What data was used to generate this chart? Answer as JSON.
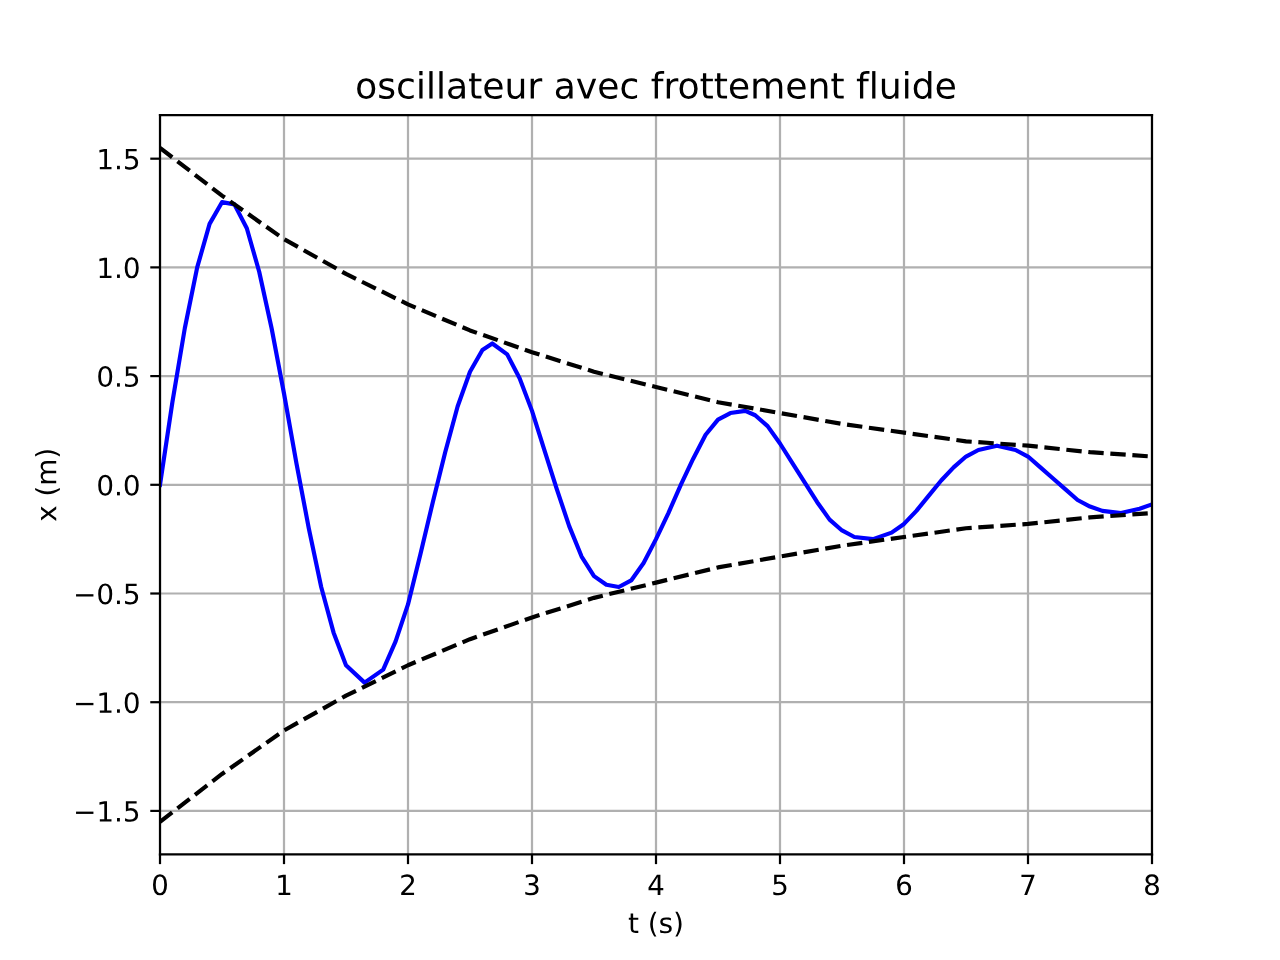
{
  "chart_data": {
    "type": "line",
    "title": "oscillateur avec frottement fluide",
    "xlabel": "t (s)",
    "ylabel": "x (m)",
    "xlim": [
      0,
      8
    ],
    "ylim": [
      -1.7,
      1.7
    ],
    "xticks": [
      0,
      1,
      2,
      3,
      4,
      5,
      6,
      7,
      8
    ],
    "yticks": [
      {
        "value": -1.5,
        "label": "−1.5"
      },
      {
        "value": -1,
        "label": "−1.0"
      },
      {
        "value": -0.5,
        "label": "−0.5"
      },
      {
        "value": 0,
        "label": "0.0"
      },
      {
        "value": 0.5,
        "label": "0.5"
      },
      {
        "value": 1,
        "label": "1.0"
      },
      {
        "value": 1.5,
        "label": "1.5"
      }
    ],
    "grid": true,
    "legend": false,
    "marker": "none",
    "series": [
      {
        "color": "#0000ff",
        "line_style": "solid",
        "x": [
          0,
          0.1,
          0.2,
          0.3,
          0.4,
          0.5,
          0.6,
          0.7,
          0.8,
          0.9,
          1.0,
          1.1,
          1.2,
          1.3,
          1.4,
          1.5,
          1.65,
          1.8,
          1.9,
          2.0,
          2.1,
          2.2,
          2.3,
          2.4,
          2.5,
          2.6,
          2.68,
          2.8,
          2.9,
          3.0,
          3.1,
          3.2,
          3.3,
          3.4,
          3.5,
          3.6,
          3.7,
          3.8,
          3.9,
          4.0,
          4.1,
          4.2,
          4.3,
          4.4,
          4.5,
          4.6,
          4.72,
          4.8,
          4.9,
          5.0,
          5.1,
          5.2,
          5.3,
          5.4,
          5.5,
          5.6,
          5.75,
          5.9,
          6.0,
          6.1,
          6.2,
          6.3,
          6.4,
          6.5,
          6.6,
          6.75,
          6.9,
          7.0,
          7.1,
          7.2,
          7.3,
          7.4,
          7.5,
          7.6,
          7.75,
          7.9,
          8.0
        ],
        "values": [
          0,
          0.38,
          0.72,
          1.0,
          1.2,
          1.3,
          1.29,
          1.18,
          0.98,
          0.72,
          0.42,
          0.1,
          -0.2,
          -0.47,
          -0.68,
          -0.83,
          -0.91,
          -0.85,
          -0.72,
          -0.55,
          -0.32,
          -0.08,
          0.15,
          0.36,
          0.52,
          0.62,
          0.65,
          0.6,
          0.49,
          0.34,
          0.16,
          -0.02,
          -0.19,
          -0.33,
          -0.42,
          -0.46,
          -0.47,
          -0.44,
          -0.36,
          -0.25,
          -0.13,
          0.0,
          0.12,
          0.23,
          0.3,
          0.33,
          0.34,
          0.32,
          0.27,
          0.19,
          0.1,
          0.01,
          -0.08,
          -0.16,
          -0.21,
          -0.24,
          -0.25,
          -0.22,
          -0.18,
          -0.12,
          -0.05,
          0.02,
          0.08,
          0.13,
          0.16,
          0.18,
          0.16,
          0.13,
          0.08,
          0.03,
          -0.02,
          -0.07,
          -0.1,
          -0.12,
          -0.13,
          -0.11,
          -0.09
        ]
      },
      {
        "color": "#000000",
        "line_style": "dashed",
        "x": [
          0,
          0.5,
          1,
          1.5,
          2,
          2.5,
          3,
          3.5,
          4,
          4.5,
          5,
          5.5,
          6,
          6.5,
          7,
          7.5,
          8
        ],
        "values": [
          1.55,
          1.33,
          1.13,
          0.97,
          0.83,
          0.71,
          0.61,
          0.52,
          0.45,
          0.38,
          0.33,
          0.28,
          0.24,
          0.2,
          0.18,
          0.15,
          0.13
        ]
      },
      {
        "color": "#000000",
        "line_style": "dashed",
        "x": [
          0,
          0.5,
          1,
          1.5,
          2,
          2.5,
          3,
          3.5,
          4,
          4.5,
          5,
          5.5,
          6,
          6.5,
          7,
          7.5,
          8
        ],
        "values": [
          -1.55,
          -1.33,
          -1.13,
          -0.97,
          -0.83,
          -0.71,
          -0.61,
          -0.52,
          -0.45,
          -0.38,
          -0.33,
          -0.28,
          -0.24,
          -0.2,
          -0.18,
          -0.15,
          -0.13
        ]
      }
    ]
  }
}
